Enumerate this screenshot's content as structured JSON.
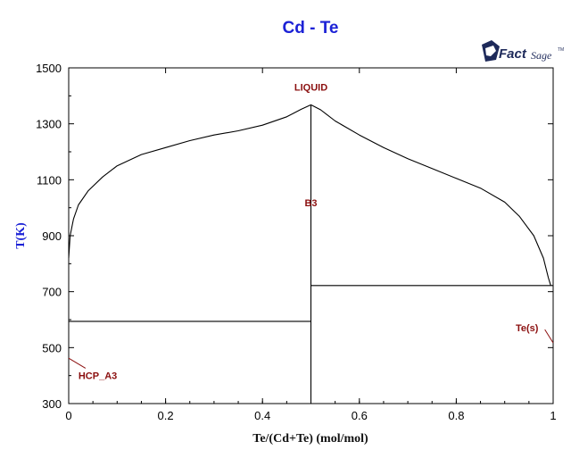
{
  "logo": {
    "name": "FactSage-logo",
    "brand": "Fact",
    "suffix": "Sage",
    "tm": "TM"
  },
  "chart_data": {
    "type": "line",
    "title": "Cd - Te",
    "xlabel": "Te/(Cd+Te) (mol/mol)",
    "ylabel": "T(K)",
    "xlim": [
      0,
      1
    ],
    "ylim": [
      300,
      1500
    ],
    "x_ticks": [
      0,
      0.2,
      0.4,
      0.6,
      0.8,
      1
    ],
    "x_tick_labels": [
      "0",
      "0.2",
      "0.4",
      "0.6",
      "0.8",
      "1"
    ],
    "y_ticks": [
      300,
      500,
      700,
      900,
      1100,
      1300,
      1500
    ],
    "y_tick_labels": [
      "300",
      "500",
      "700",
      "900",
      "1100",
      "1300",
      "1500"
    ],
    "grid": false,
    "colors": {
      "title": "#1c22d6",
      "ylabel": "#1c22d6",
      "phase_labels": "#8b0f0f",
      "lines": "#000000"
    },
    "liquidus_left": [
      [
        0.0,
        820
      ],
      [
        0.003,
        900
      ],
      [
        0.01,
        960
      ],
      [
        0.02,
        1010
      ],
      [
        0.04,
        1060
      ],
      [
        0.07,
        1110
      ],
      [
        0.1,
        1150
      ],
      [
        0.15,
        1190
      ],
      [
        0.2,
        1215
      ],
      [
        0.25,
        1240
      ],
      [
        0.3,
        1260
      ],
      [
        0.35,
        1275
      ],
      [
        0.4,
        1295
      ],
      [
        0.45,
        1325
      ],
      [
        0.48,
        1352
      ],
      [
        0.5,
        1368
      ]
    ],
    "liquidus_right": [
      [
        0.5,
        1368
      ],
      [
        0.52,
        1350
      ],
      [
        0.55,
        1310
      ],
      [
        0.6,
        1260
      ],
      [
        0.65,
        1215
      ],
      [
        0.7,
        1175
      ],
      [
        0.75,
        1140
      ],
      [
        0.8,
        1105
      ],
      [
        0.85,
        1070
      ],
      [
        0.9,
        1020
      ],
      [
        0.93,
        970
      ],
      [
        0.96,
        900
      ],
      [
        0.98,
        820
      ],
      [
        0.99,
        750
      ],
      [
        0.995,
        722
      ]
    ],
    "compound_line": [
      [
        0.5,
        300
      ],
      [
        0.5,
        1368
      ]
    ],
    "eutectic_left": [
      [
        0.0,
        594
      ],
      [
        0.5,
        594
      ]
    ],
    "eutectic_right": [
      [
        0.5,
        722
      ],
      [
        1.0,
        722
      ]
    ],
    "labels": [
      {
        "text": "LIQUID",
        "x": 0.5,
        "y": 1418
      },
      {
        "text": "B3",
        "x": 0.5,
        "y": 1005
      },
      {
        "text": "HCP_A3",
        "x": 0.02,
        "y": 388,
        "leader_to": [
          0.0,
          462
        ]
      },
      {
        "text": "Te(s)",
        "x": 0.946,
        "y": 558,
        "leader_to": [
          1.0,
          517
        ]
      }
    ]
  }
}
